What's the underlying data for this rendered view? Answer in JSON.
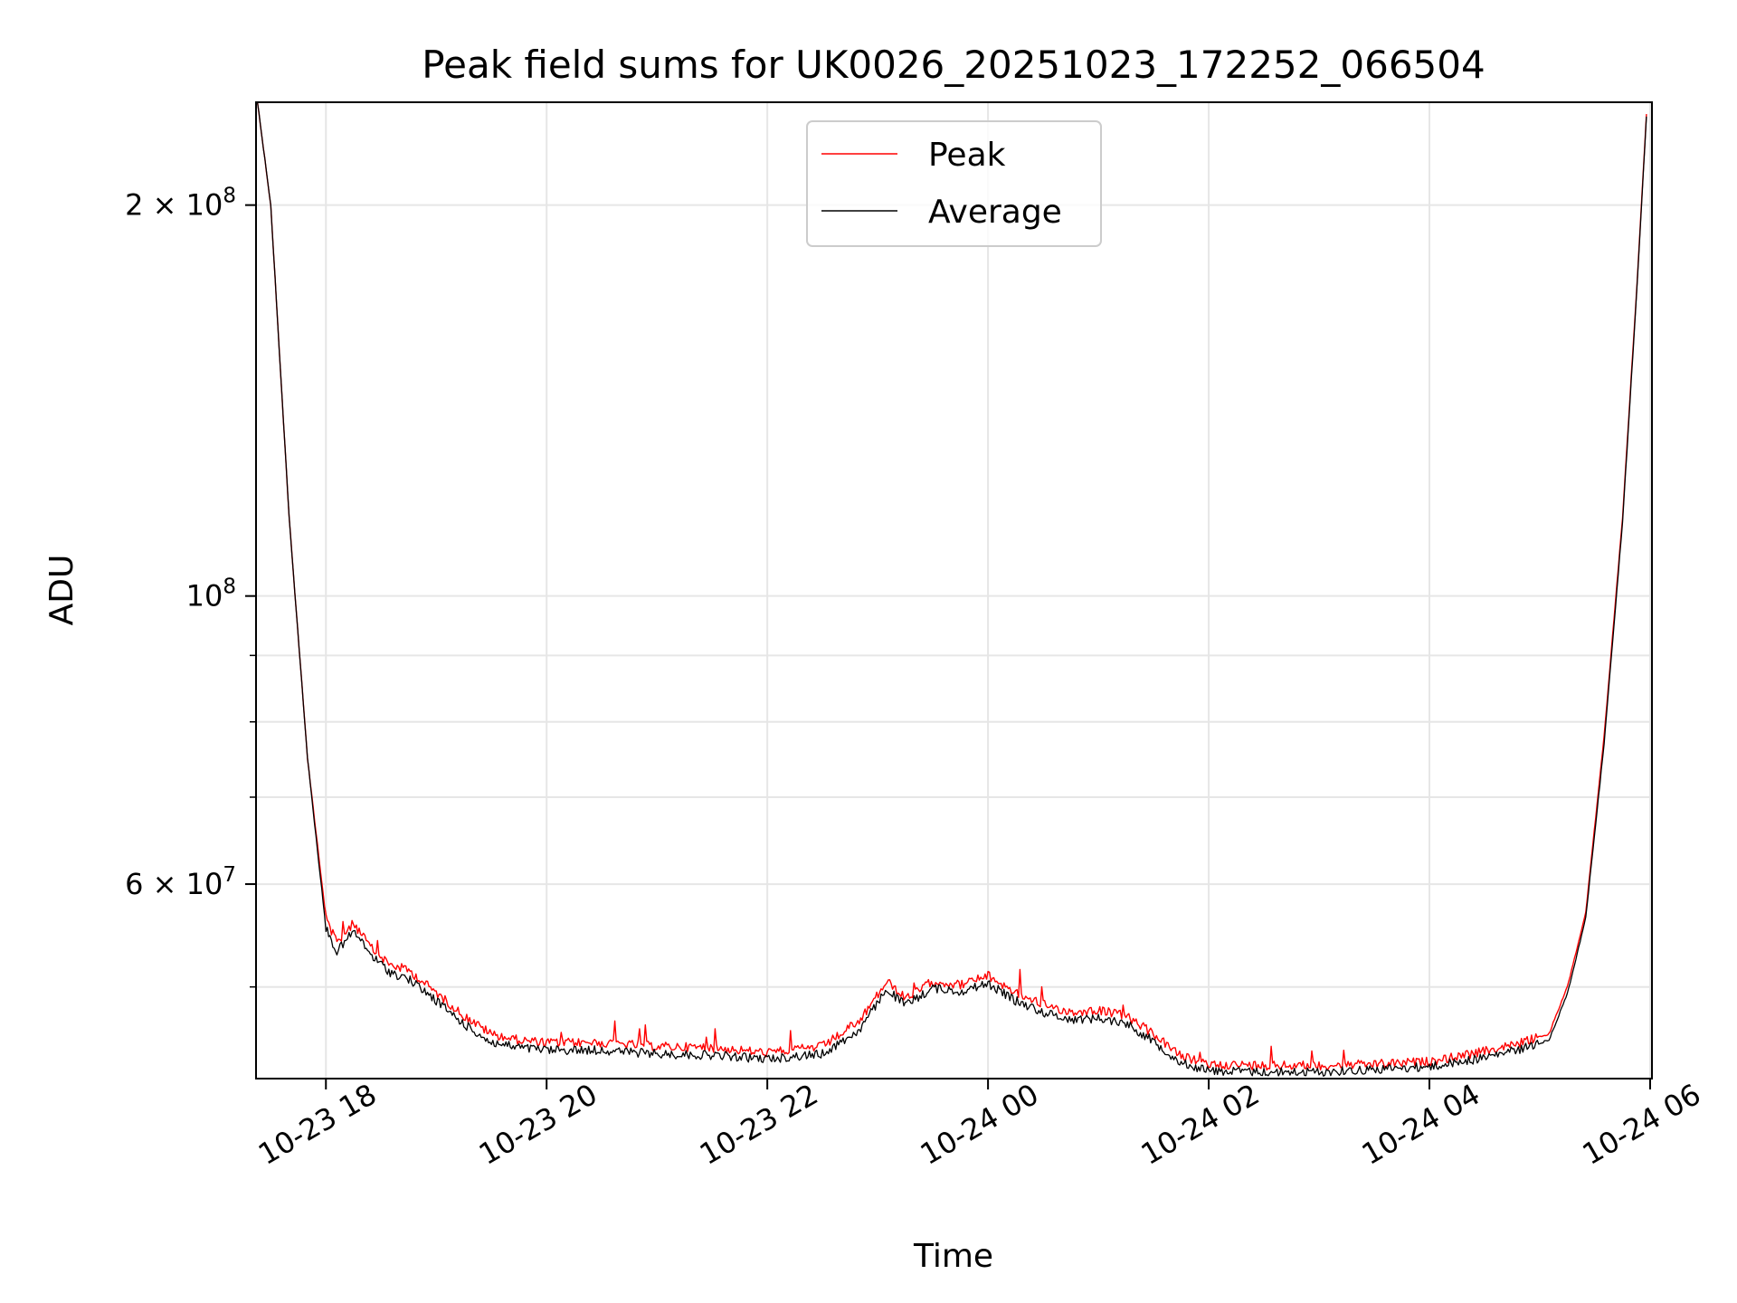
{
  "chart_data": {
    "type": "line",
    "title": "Peak field sums for UK0026_20251023_172252_066504",
    "xlabel": "Time",
    "ylabel": "ADU",
    "yscale": "log",
    "ylim": [
      42500000,
      240000000
    ],
    "xlim": [
      "2025-10-23 17:22",
      "2025-10-24 06:01"
    ],
    "grid": true,
    "legend_position": "upper-center",
    "x_ticks": [
      {
        "t": "2025-10-23 18:00",
        "label": "10-23 18"
      },
      {
        "t": "2025-10-23 20:00",
        "label": "10-23 20"
      },
      {
        "t": "2025-10-23 22:00",
        "label": "10-23 22"
      },
      {
        "t": "2025-10-24 00:00",
        "label": "10-24 00"
      },
      {
        "t": "2025-10-24 02:00",
        "label": "10-24 02"
      },
      {
        "t": "2025-10-24 04:00",
        "label": "10-24 04"
      },
      {
        "t": "2025-10-24 06:00",
        "label": "10-24 06"
      }
    ],
    "y_ticks_major": [
      {
        "v": 200000000,
        "base": "2 × 10",
        "exp": "8"
      },
      {
        "v": 100000000,
        "base": "10",
        "exp": "8"
      },
      {
        "v": 60000000,
        "base": "6 × 10",
        "exp": "7"
      }
    ],
    "y_ticks_minor": [
      50000000,
      70000000,
      80000000,
      90000000
    ],
    "series": [
      {
        "name": "Peak",
        "color": "#ff0000",
        "x": [
          "2025-10-23 17:22",
          "2025-10-23 17:30",
          "2025-10-23 17:40",
          "2025-10-23 17:50",
          "2025-10-23 18:00",
          "2025-10-23 18:06",
          "2025-10-23 18:15",
          "2025-10-23 18:25",
          "2025-10-23 18:35",
          "2025-10-23 18:45",
          "2025-10-23 19:00",
          "2025-10-23 19:15",
          "2025-10-23 19:30",
          "2025-10-23 19:45",
          "2025-10-23 20:00",
          "2025-10-23 20:30",
          "2025-10-23 21:00",
          "2025-10-23 21:30",
          "2025-10-23 22:00",
          "2025-10-23 22:30",
          "2025-10-23 22:50",
          "2025-10-23 23:05",
          "2025-10-23 23:15",
          "2025-10-23 23:30",
          "2025-10-23 23:45",
          "2025-10-24 00:00",
          "2025-10-24 00:15",
          "2025-10-24 00:30",
          "2025-10-24 00:45",
          "2025-10-24 01:00",
          "2025-10-24 01:15",
          "2025-10-24 01:30",
          "2025-10-24 01:45",
          "2025-10-24 02:00",
          "2025-10-24 02:30",
          "2025-10-24 03:00",
          "2025-10-24 03:30",
          "2025-10-24 04:00",
          "2025-10-24 04:30",
          "2025-10-24 04:50",
          "2025-10-24 05:05",
          "2025-10-24 05:15",
          "2025-10-24 05:25",
          "2025-10-24 05:35",
          "2025-10-24 05:45",
          "2025-10-24 05:53",
          "2025-10-24 05:58"
        ],
        "values": [
          245000000,
          200000000,
          115000000,
          75000000,
          56500000,
          54000000,
          56000000,
          53500000,
          52000000,
          51500000,
          49500000,
          47500000,
          46000000,
          45500000,
          45300000,
          45300000,
          45000000,
          44900000,
          44500000,
          45000000,
          47000000,
          50500000,
          49000000,
          50500000,
          50200000,
          51000000,
          49500000,
          48500000,
          47800000,
          48000000,
          47500000,
          46000000,
          44200000,
          43600000,
          43500000,
          43500000,
          43600000,
          43800000,
          44600000,
          45300000,
          46000000,
          50000000,
          57000000,
          78000000,
          115000000,
          175000000,
          235000000
        ]
      },
      {
        "name": "Average",
        "color": "#000000",
        "x": [
          "2025-10-23 17:22",
          "2025-10-23 17:30",
          "2025-10-23 17:40",
          "2025-10-23 17:50",
          "2025-10-23 18:00",
          "2025-10-23 18:06",
          "2025-10-23 18:15",
          "2025-10-23 18:25",
          "2025-10-23 18:35",
          "2025-10-23 18:45",
          "2025-10-23 19:00",
          "2025-10-23 19:15",
          "2025-10-23 19:30",
          "2025-10-23 19:45",
          "2025-10-23 20:00",
          "2025-10-23 20:30",
          "2025-10-23 21:00",
          "2025-10-23 21:30",
          "2025-10-23 22:00",
          "2025-10-23 22:30",
          "2025-10-23 22:50",
          "2025-10-23 23:05",
          "2025-10-23 23:15",
          "2025-10-23 23:30",
          "2025-10-23 23:45",
          "2025-10-24 00:00",
          "2025-10-24 00:15",
          "2025-10-24 00:30",
          "2025-10-24 00:45",
          "2025-10-24 01:00",
          "2025-10-24 01:15",
          "2025-10-24 01:30",
          "2025-10-24 01:45",
          "2025-10-24 02:00",
          "2025-10-24 02:30",
          "2025-10-24 03:00",
          "2025-10-24 03:30",
          "2025-10-24 04:00",
          "2025-10-24 04:30",
          "2025-10-24 04:50",
          "2025-10-24 05:05",
          "2025-10-24 05:15",
          "2025-10-24 05:25",
          "2025-10-24 05:35",
          "2025-10-24 05:45",
          "2025-10-24 05:53",
          "2025-10-24 05:58"
        ],
        "values": [
          245000000,
          200000000,
          115000000,
          75000000,
          55500000,
          53200000,
          55200000,
          52800000,
          51300000,
          50700000,
          48800000,
          46800000,
          45300000,
          44900000,
          44700000,
          44700000,
          44400000,
          44300000,
          44000000,
          44400000,
          46300000,
          49800000,
          48400000,
          49900000,
          49600000,
          50300000,
          48800000,
          47800000,
          47200000,
          47300000,
          46900000,
          45400000,
          43700000,
          43100000,
          43000000,
          43000000,
          43200000,
          43400000,
          44100000,
          44800000,
          45500000,
          49400000,
          56500000,
          77000000,
          114000000,
          174000000,
          234000000
        ]
      }
    ]
  }
}
